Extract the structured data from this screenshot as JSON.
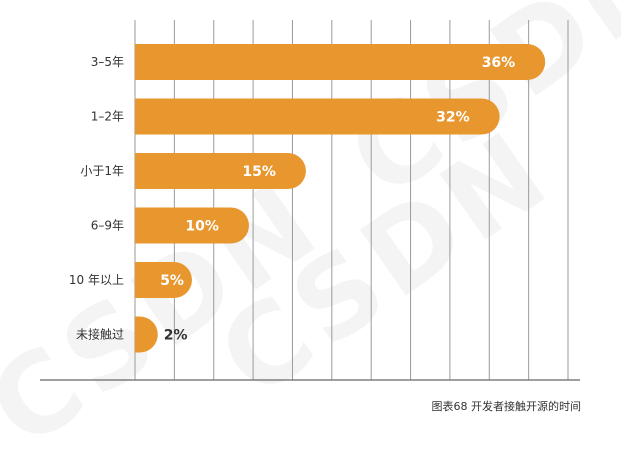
{
  "chart_data": {
    "type": "bar",
    "orientation": "horizontal",
    "categories": [
      "3–5年",
      "1–2年",
      "小于1年",
      "6–9年",
      "10 年以上",
      "未接触过"
    ],
    "values": [
      36,
      32,
      15,
      10,
      5,
      2
    ],
    "value_labels": [
      "36%",
      "32%",
      "15%",
      "10%",
      "5%",
      "2%"
    ],
    "xlim": [
      0,
      40
    ],
    "x_gridline_step": 3.333,
    "grid": true,
    "bar_color": "#E8962E",
    "outside_label_color": "#333333",
    "inside_label_color": "#FFFFFF"
  },
  "caption": "图表68  开发者接触开源的时间",
  "watermark": "CSDN"
}
